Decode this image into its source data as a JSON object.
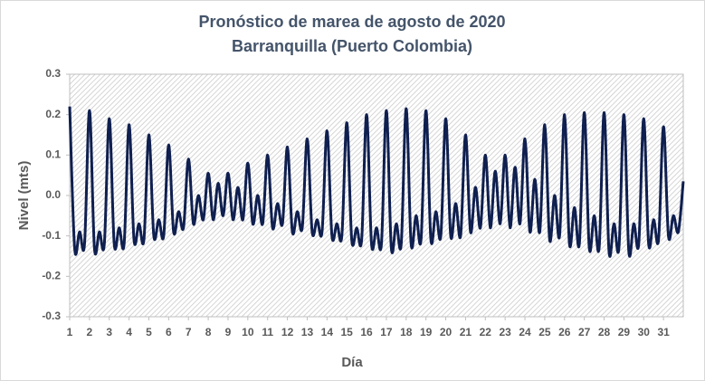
{
  "chart_data": {
    "type": "line",
    "title": "Pronóstico de marea de agosto de 2020",
    "subtitle": "Barranquilla (Puerto Colombia)",
    "x_label": "Día",
    "y_label": "Nivel (mts)",
    "color": "#0f1f4f",
    "xlim": [
      1,
      32
    ],
    "xticks": [
      1,
      2,
      3,
      4,
      5,
      6,
      7,
      8,
      9,
      10,
      11,
      12,
      13,
      14,
      15,
      16,
      17,
      18,
      19,
      20,
      21,
      22,
      23,
      24,
      25,
      26,
      27,
      28,
      29,
      30,
      31
    ],
    "ylim": [
      -0.3,
      0.3
    ],
    "yticks": [
      -0.3,
      -0.2,
      -0.1,
      {
        "value": 0,
        "label": "0.0"
      },
      0.1,
      0.2,
      0.3
    ],
    "x": [
      1,
      1.25,
      1.5,
      1.75,
      2,
      2.25,
      2.5,
      2.75,
      3,
      3.25,
      3.5,
      3.75,
      4,
      4.25,
      4.5,
      4.75,
      5,
      5.25,
      5.5,
      5.75,
      6,
      6.25,
      6.5,
      6.75,
      7,
      7.25,
      7.5,
      7.75,
      8,
      8.25,
      8.5,
      8.75,
      9,
      9.25,
      9.5,
      9.75,
      10,
      10.25,
      10.5,
      10.75,
      11,
      11.25,
      11.5,
      11.75,
      12,
      12.25,
      12.5,
      12.75,
      13,
      13.25,
      13.5,
      13.75,
      14,
      14.25,
      14.5,
      14.75,
      15,
      15.25,
      15.5,
      15.75,
      16,
      16.25,
      16.5,
      16.75,
      17,
      17.25,
      17.5,
      17.75,
      18,
      18.25,
      18.5,
      18.75,
      19,
      19.25,
      19.5,
      19.75,
      20,
      20.25,
      20.5,
      20.75,
      21,
      21.25,
      21.5,
      21.75,
      22,
      22.25,
      22.5,
      22.75,
      23,
      23.25,
      23.5,
      23.75,
      24,
      24.25,
      24.5,
      24.75,
      25,
      25.25,
      25.5,
      25.75,
      26,
      26.25,
      26.5,
      26.75,
      27,
      27.25,
      27.5,
      27.75,
      28,
      28.25,
      28.5,
      28.75,
      29,
      29.25,
      29.5,
      29.75,
      30,
      30.25,
      30.5,
      30.75,
      31,
      31.25,
      31.5,
      31.75,
      32
    ],
    "values": [
      0.22,
      -0.13,
      -0.09,
      -0.12,
      0.21,
      -0.13,
      -0.09,
      -0.12,
      0.19,
      -0.12,
      -0.08,
      -0.12,
      0.175,
      -0.11,
      -0.07,
      -0.11,
      0.15,
      -0.1,
      -0.06,
      -0.1,
      0.125,
      -0.09,
      -0.04,
      -0.08,
      0.09,
      -0.07,
      0.0,
      -0.06,
      0.055,
      -0.06,
      0.03,
      -0.05,
      0.055,
      -0.06,
      0.02,
      -0.06,
      0.08,
      -0.07,
      0.0,
      -0.07,
      0.1,
      -0.08,
      -0.02,
      -0.07,
      0.12,
      -0.09,
      -0.04,
      -0.08,
      0.14,
      -0.09,
      -0.06,
      -0.09,
      0.16,
      -0.1,
      -0.07,
      -0.1,
      0.18,
      -0.11,
      -0.08,
      -0.11,
      0.2,
      -0.12,
      -0.08,
      -0.12,
      0.21,
      -0.13,
      -0.07,
      -0.12,
      0.215,
      -0.12,
      -0.05,
      -0.11,
      0.21,
      -0.11,
      -0.04,
      -0.1,
      0.19,
      -0.1,
      -0.02,
      -0.1,
      0.15,
      -0.09,
      0.02,
      -0.08,
      0.1,
      -0.08,
      0.06,
      -0.07,
      0.1,
      -0.08,
      0.07,
      -0.07,
      0.14,
      -0.09,
      0.04,
      -0.09,
      0.175,
      -0.11,
      0.0,
      -0.1,
      0.2,
      -0.12,
      -0.03,
      -0.12,
      0.205,
      -0.13,
      -0.05,
      -0.13,
      0.205,
      -0.14,
      -0.07,
      -0.13,
      0.2,
      -0.14,
      -0.07,
      -0.12,
      0.19,
      -0.12,
      -0.06,
      -0.11,
      0.17,
      -0.1,
      -0.05,
      -0.09,
      0.035
    ]
  }
}
